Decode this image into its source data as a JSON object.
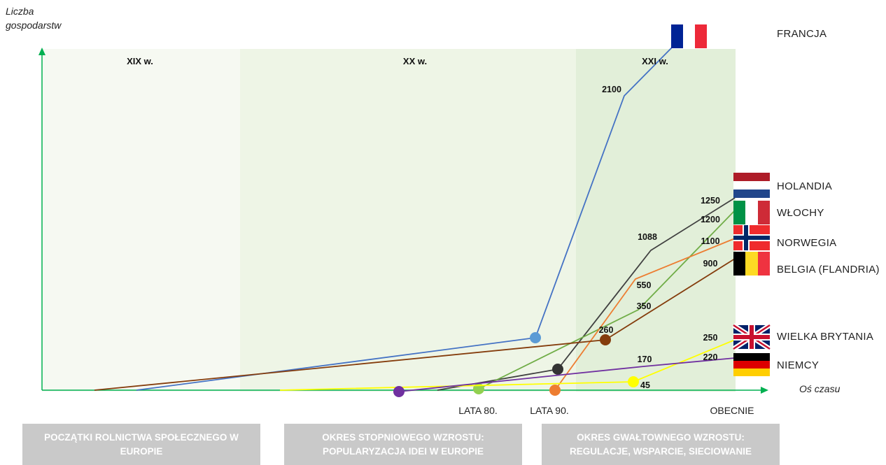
{
  "y_axis_title": "Liczba gospodarstw",
  "x_axis_title": "Oś czasu",
  "eras": [
    "XIX w.",
    "XX w.",
    "XXI w."
  ],
  "x_ticks": [
    "LATA 80.",
    "LATA 90.",
    "OBECNIE"
  ],
  "periods": [
    "POCZĄTKI ROLNICTWA SPOŁECZNEGO W EUROPIE",
    "OKRES STOPNIOWEGO WZROSTU: POPULARYZACJA IDEI W EUROPIE",
    "OKRES GWAŁTOWNEGO WZROSTU: REGULACJE, WSPARCIE, SIECIOWANIE"
  ],
  "colors": {
    "axis": "#00b050",
    "era_xix_bg": "#f6f9f2",
    "era_xx_bg": "#eef5e6",
    "era_xxi_bg": "#e2efd9",
    "period_box": "#c9c9c9"
  },
  "chart_data": {
    "type": "line",
    "title": "",
    "xlabel": "Oś czasu",
    "ylabel": "Liczba gospodarstw",
    "x_ticks": [
      "LATA 80.",
      "LATA 90.",
      "OBECNIE"
    ],
    "series": [
      {
        "name": "FRANCJA",
        "color": "#4472c4",
        "marker_color": "#5b9bd5",
        "points": [
          {
            "t": "start",
            "y": 0
          },
          {
            "t": "marker",
            "y": null
          },
          {
            "t": "",
            "y": 2100
          },
          {
            "t": "",
            "y": null
          }
        ],
        "value_labels": [
          "2100"
        ],
        "flag": "france-flag-icon"
      },
      {
        "name": "HOLANDIA",
        "color": "#404040",
        "marker_color": "#333333",
        "points": [
          {
            "t": "start",
            "y": 0
          },
          {
            "t": "marker",
            "y": null
          },
          {
            "t": "",
            "y": 1088
          },
          {
            "t": "OBECNIE",
            "y": 1250
          }
        ],
        "value_labels": [
          "1088",
          "1250"
        ],
        "flag": "netherlands-flag-icon"
      },
      {
        "name": "WŁOCHY",
        "color": "#70ad47",
        "marker_color": "#92d050",
        "points": [
          {
            "t": "LATA 80.",
            "y": null
          },
          {
            "t": "",
            "y": 350
          },
          {
            "t": "OBECNIE",
            "y": 1200
          }
        ],
        "value_labels": [
          "350",
          "1200"
        ],
        "flag": "italy-flag-icon"
      },
      {
        "name": "NORWEGIA",
        "color": "#ed7d31",
        "marker_color": "#ed7d31",
        "points": [
          {
            "t": "LATA 90.",
            "y": 0
          },
          {
            "t": "",
            "y": 550
          },
          {
            "t": "OBECNIE",
            "y": 1100
          }
        ],
        "value_labels": [
          "550",
          "1100"
        ],
        "flag": "norway-flag-icon"
      },
      {
        "name": "BELGIA (FLANDRIA)",
        "color": "#843c0c",
        "marker_color": "#843c0c",
        "points": [
          {
            "t": "start",
            "y": 0
          },
          {
            "t": "marker",
            "y": 260
          },
          {
            "t": "OBECNIE",
            "y": 900
          }
        ],
        "value_labels": [
          "260",
          "900"
        ],
        "flag": "belgium-flag-icon"
      },
      {
        "name": "WIELKA BRYTANIA",
        "color": "#ffff00",
        "marker_color": "#ffff00",
        "points": [
          {
            "t": "start",
            "y": 0
          },
          {
            "t": "marker",
            "y": 45
          },
          {
            "t": "OBECNIE",
            "y": 250
          }
        ],
        "value_labels": [
          "45",
          "250"
        ],
        "flag": "uk-flag-icon"
      },
      {
        "name": "NIEMCY",
        "color": "#7030a0",
        "marker_color": "#7030a0",
        "points": [
          {
            "t": "marker",
            "y": 0
          },
          {
            "t": "",
            "y": 170
          },
          {
            "t": "OBECNIE",
            "y": 220
          }
        ],
        "value_labels": [
          "170",
          "220"
        ],
        "flag": "germany-flag-icon"
      }
    ]
  }
}
